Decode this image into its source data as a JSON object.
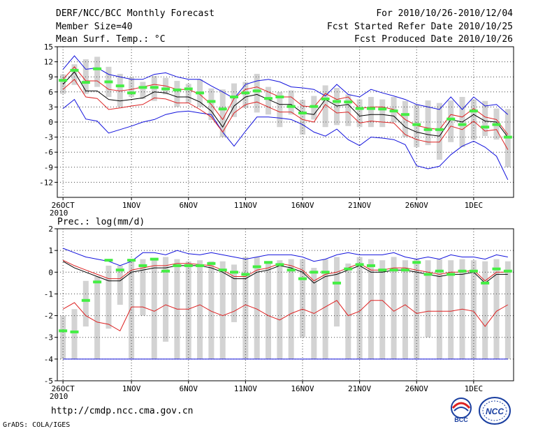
{
  "header": {
    "title": "DERF/NCC/BCC Monthly Forecast",
    "member_size": "Member Size=40",
    "variable": "Mean Surf. Temp.: °C",
    "period": "For 2010/10/26-2010/12/04",
    "fcst_started": "Fcst Started Refer Date 2010/10/25",
    "fcst_produced": "Fcst Produced Date 2010/10/26"
  },
  "footer": {
    "url": "http://cmdp.ncc.cma.gov.cn",
    "grads": "GrADS: COLA/IGES",
    "logo_bcc_text": "BCC",
    "logo_ncc_text": "NCC"
  },
  "colors": {
    "box": "#d3d3d3",
    "obs": "#44ee44",
    "mean": "#000000",
    "spread": "#dd2222",
    "extreme": "#1111dd",
    "grid": "#444444"
  },
  "chart_data": [
    {
      "type": "box-ensemble",
      "title": "Mean Surf. Temp.: °C",
      "ylabel": "°C",
      "ylim": [
        -15,
        15
      ],
      "yticks": [
        15,
        12,
        9,
        6,
        3,
        0,
        -3,
        -6,
        -9,
        -12
      ],
      "x_days": 40,
      "xtick_labels": [
        {
          "day": 1,
          "label": "26OCT",
          "sub": "2010"
        },
        {
          "day": 7,
          "label": "1NOV"
        },
        {
          "day": 12,
          "label": "6NOV"
        },
        {
          "day": 17,
          "label": "11NOV"
        },
        {
          "day": 22,
          "label": "16NOV"
        },
        {
          "day": 27,
          "label": "21NOV"
        },
        {
          "day": 32,
          "label": "26NOV"
        },
        {
          "day": 37,
          "label": "1DEC"
        }
      ],
      "series": [
        {
          "name": "ensemble max",
          "values": [
            2.7,
            4.5,
            0.6,
            0.2,
            -2.2,
            -1.5,
            -0.8,
            0,
            0.5,
            1.5,
            2,
            2.2,
            1.8,
            1.5,
            -2,
            -4.8,
            -1.8,
            1,
            1,
            0.8,
            0.5,
            -0.5,
            -2,
            -2.8,
            -1.4,
            -3.5,
            -4.7,
            -3,
            -3.2,
            -3.5,
            -4.5,
            -8.7,
            -9.3,
            -8.8,
            -6.5,
            -4.8,
            -3.8,
            -5,
            -6.8,
            -11.5
          ]
        },
        {
          "name": "ensemble min",
          "values": [
            10.5,
            13.2,
            10.5,
            10.8,
            9.5,
            9,
            8.5,
            8.5,
            9.5,
            9.8,
            9,
            8.5,
            8.5,
            7.2,
            6,
            4.7,
            7.5,
            8.2,
            8.5,
            8,
            7,
            6.8,
            6.5,
            5.2,
            7.5,
            5.5,
            5,
            6.5,
            5.8,
            5.2,
            4.5,
            3.5,
            3,
            2.5,
            5,
            2.5,
            5,
            3.2,
            3.5,
            1.5
          ]
        },
        {
          "name": "mean",
          "values": [
            7.5,
            10,
            6.2,
            6.2,
            4.5,
            4.2,
            4.5,
            4.8,
            6,
            5.8,
            5,
            5,
            4,
            2.2,
            -1,
            3.2,
            5,
            5.5,
            4.5,
            3.5,
            3.5,
            1.8,
            1.5,
            4.5,
            3.2,
            3.5,
            1.2,
            1.5,
            1.5,
            1.2,
            -1,
            -2,
            -2.5,
            -2.8,
            0.5,
            0,
            1.5,
            0.2,
            0,
            -3
          ]
        },
        {
          "name": "mean + spread",
          "values": [
            8.5,
            11,
            8.2,
            8.2,
            6.5,
            6.2,
            6.5,
            7,
            7.5,
            7.2,
            6.5,
            6.5,
            5.5,
            3.5,
            0.5,
            4.7,
            6.5,
            7,
            6,
            5,
            5,
            3.2,
            3,
            5.7,
            4.5,
            5,
            2.7,
            3,
            3,
            2.5,
            0.5,
            -0.7,
            -1.2,
            -1.5,
            1.5,
            1,
            2.7,
            1,
            0.5,
            -2.5
          ]
        },
        {
          "name": "mean - spread",
          "values": [
            6.5,
            8.5,
            5,
            4.7,
            2.5,
            2.8,
            3.2,
            3.5,
            4.8,
            4.6,
            3.8,
            3.8,
            2.5,
            1,
            -2,
            1.8,
            3.5,
            4,
            3,
            2,
            2,
            0.5,
            0,
            3.5,
            1.8,
            2,
            -0.2,
            0.2,
            0,
            -0.2,
            -2.5,
            -3.5,
            -4,
            -4,
            -0.8,
            -1.5,
            0.2,
            -1.8,
            -1.5,
            -5.5
          ]
        },
        {
          "name": "observation",
          "values": [
            8.3,
            10.3,
            7.9,
            10.6,
            8,
            7.2,
            5.8,
            6.9,
            6.9,
            6.6,
            6.4,
            6.6,
            5.8,
            4.1,
            2.6,
            5,
            5.8,
            6.2,
            4.7,
            5,
            3.1,
            1.8,
            3.1,
            4.6,
            4.1,
            4,
            2.7,
            2.7,
            2.6,
            2.2,
            1.5,
            -0.5,
            -1.5,
            -1.5,
            0.6,
            -0.5,
            2.2,
            -1,
            -0.5,
            -3
          ]
        }
      ],
      "boxes": [
        [
          5.6,
          9.5
        ],
        [
          7.4,
          11.5
        ],
        [
          5.6,
          12.5
        ],
        [
          7,
          13
        ],
        [
          5,
          11
        ],
        [
          3,
          9.6
        ],
        [
          5,
          8.9
        ],
        [
          4.6,
          8
        ],
        [
          4.2,
          9.2
        ],
        [
          5.5,
          8.8
        ],
        [
          3,
          8.2
        ],
        [
          3.8,
          7.6
        ],
        [
          3,
          8.5
        ],
        [
          0.4,
          6.7
        ],
        [
          -3,
          6.5
        ],
        [
          1,
          7.7
        ],
        [
          2.8,
          8
        ],
        [
          1.9,
          9.6
        ],
        [
          1.5,
          7
        ],
        [
          -1,
          6
        ],
        [
          1.5,
          6.3
        ],
        [
          -2.5,
          4.4
        ],
        [
          0.5,
          5.2
        ],
        [
          -1,
          7.3
        ],
        [
          -0.6,
          6.8
        ],
        [
          -0.8,
          5.5
        ],
        [
          -1,
          4.5
        ],
        [
          -1,
          5
        ],
        [
          -1,
          4.5
        ],
        [
          0,
          5
        ],
        [
          -3,
          4.2
        ],
        [
          -5,
          3.5
        ],
        [
          -4.6,
          4.3
        ],
        [
          -7.5,
          3.8
        ],
        [
          -4,
          4.3
        ],
        [
          -5,
          5
        ],
        [
          -3.5,
          4.5
        ],
        [
          -2.8,
          4.2
        ],
        [
          -3.5,
          2.7
        ],
        [
          -9,
          2.6
        ]
      ]
    },
    {
      "type": "box-ensemble",
      "title": "Prec.: log(mm/d)",
      "ylabel": "log(mm/d)",
      "ylim": [
        -5,
        2
      ],
      "yticks": [
        2,
        1,
        0,
        -1,
        -2,
        -3,
        -4,
        -5
      ],
      "x_days": 40,
      "xtick_labels": [
        {
          "day": 1,
          "label": "26OCT",
          "sub": "2010"
        },
        {
          "day": 7,
          "label": "1NOV"
        },
        {
          "day": 12,
          "label": "6NOV"
        },
        {
          "day": 17,
          "label": "11NOV"
        },
        {
          "day": 22,
          "label": "16NOV"
        },
        {
          "day": 27,
          "label": "21NOV"
        },
        {
          "day": 32,
          "label": "26NOV"
        },
        {
          "day": 37,
          "label": "1DEC"
        }
      ],
      "series": [
        {
          "name": "ensemble max",
          "values": [
            1.1,
            0.9,
            0.7,
            0.6,
            0.5,
            0.3,
            0.5,
            0.9,
            0.9,
            0.8,
            1,
            0.85,
            0.8,
            0.9,
            0.8,
            0.7,
            0.6,
            0.7,
            0.8,
            0.8,
            0.8,
            0.7,
            0.5,
            0.6,
            0.8,
            0.9,
            0.8,
            0.8,
            0.8,
            0.9,
            0.7,
            0.6,
            0.7,
            0.6,
            0.8,
            0.7,
            0.7,
            0.6,
            0.8,
            0.7
          ]
        },
        {
          "name": "mean",
          "values": [
            0.5,
            0.2,
            0,
            -0.2,
            -0.4,
            -0.4,
            0,
            0.1,
            0.2,
            0.2,
            0.3,
            0.3,
            0.3,
            0.2,
            0,
            -0.3,
            -0.3,
            0,
            0.1,
            0.3,
            0.2,
            0,
            -0.5,
            -0.2,
            -0.1,
            0.1,
            0.3,
            0,
            0,
            0.1,
            0.1,
            0,
            -0.1,
            -0.2,
            -0.1,
            -0.1,
            0,
            -0.5,
            -0.1,
            -0.1
          ]
        },
        {
          "name": "mean + spread",
          "values": [
            0.55,
            0.3,
            0.1,
            -0.1,
            -0.3,
            -0.3,
            0.1,
            0.2,
            0.3,
            0.3,
            0.4,
            0.4,
            0.35,
            0.3,
            0.1,
            -0.2,
            -0.2,
            0.1,
            0.2,
            0.4,
            0.3,
            0.1,
            -0.4,
            -0.1,
            0,
            0.2,
            0.4,
            0.1,
            0.1,
            0.2,
            0.2,
            0.1,
            0,
            -0.1,
            0,
            0,
            0.1,
            -0.4,
            0,
            0
          ]
        },
        {
          "name": "mean - spread",
          "values": [
            -1.7,
            -1.4,
            -2,
            -2.3,
            -2.4,
            -2.7,
            -1.6,
            -1.6,
            -1.8,
            -1.5,
            -1.7,
            -1.7,
            -1.5,
            -1.8,
            -2,
            -1.8,
            -1.5,
            -1.7,
            -2,
            -2.2,
            -1.9,
            -1.7,
            -1.9,
            -1.6,
            -1.3,
            -2,
            -1.8,
            -1.3,
            -1.3,
            -1.8,
            -1.5,
            -1.9,
            -1.8,
            -1.8,
            -1.8,
            -1.7,
            -1.8,
            -2.5,
            -1.8,
            -1.5
          ]
        },
        {
          "name": "ensemble min",
          "values": [
            -4,
            -4,
            -4,
            -4,
            -4,
            -4,
            -4,
            -4,
            -4,
            -4,
            -4,
            -4,
            -4,
            -4,
            -4,
            -4,
            -4,
            -4,
            -4,
            -4,
            -4,
            -4,
            -4,
            -4,
            -4,
            -4,
            -4,
            -4,
            -4,
            -4,
            -4,
            -4,
            -4,
            -4,
            -4,
            -4,
            -4,
            -4,
            -4,
            -4
          ]
        },
        {
          "name": "observation",
          "values": [
            -2.7,
            -2.75,
            -1.3,
            -0.45,
            0.55,
            0.1,
            0.55,
            0.3,
            0.6,
            0.05,
            0.3,
            0.3,
            0.3,
            0.4,
            0.1,
            0,
            -0.1,
            0.25,
            0.45,
            0.35,
            0.1,
            -0.3,
            0,
            0,
            -0.5,
            0.15,
            0.35,
            0.3,
            0.1,
            0.1,
            0.1,
            0.45,
            -0.1,
            0.05,
            -0.1,
            0.05,
            0.05,
            -0.5,
            0.15,
            0.05
          ]
        }
      ],
      "boxes": [
        [
          -4,
          -2
        ],
        [
          -4,
          -1.7
        ],
        [
          -2.5,
          -0.4
        ],
        [
          -4,
          -0.2
        ],
        [
          -2.6,
          0.3
        ],
        [
          -1.5,
          0.3
        ],
        [
          -4,
          0.5
        ],
        [
          -2,
          0.6
        ],
        [
          -4,
          0.6
        ],
        [
          -3.2,
          0.7
        ],
        [
          -4,
          0.6
        ],
        [
          -4,
          0.5
        ],
        [
          -4,
          0.55
        ],
        [
          -4,
          0.5
        ],
        [
          -4,
          0.5
        ],
        [
          -2.3,
          0.35
        ],
        [
          -4,
          0.7
        ],
        [
          -4,
          0.7
        ],
        [
          -4,
          0.5
        ],
        [
          -4,
          0.55
        ],
        [
          -4,
          0.6
        ],
        [
          -3,
          0.6
        ],
        [
          -4,
          0.2
        ],
        [
          -4,
          0.6
        ],
        [
          -2.5,
          0.7
        ],
        [
          -4,
          0.4
        ],
        [
          -4,
          0.7
        ],
        [
          -4,
          0.6
        ],
        [
          -4,
          0.55
        ],
        [
          -4,
          0.7
        ],
        [
          -4,
          0.55
        ],
        [
          -4,
          0.6
        ],
        [
          -3,
          0.55
        ],
        [
          -4,
          0.6
        ],
        [
          -4,
          0.55
        ],
        [
          -4,
          0.6
        ],
        [
          -4,
          0.55
        ],
        [
          -4,
          0.5
        ],
        [
          -4,
          0.6
        ],
        [
          -4,
          0.5
        ]
      ]
    }
  ]
}
